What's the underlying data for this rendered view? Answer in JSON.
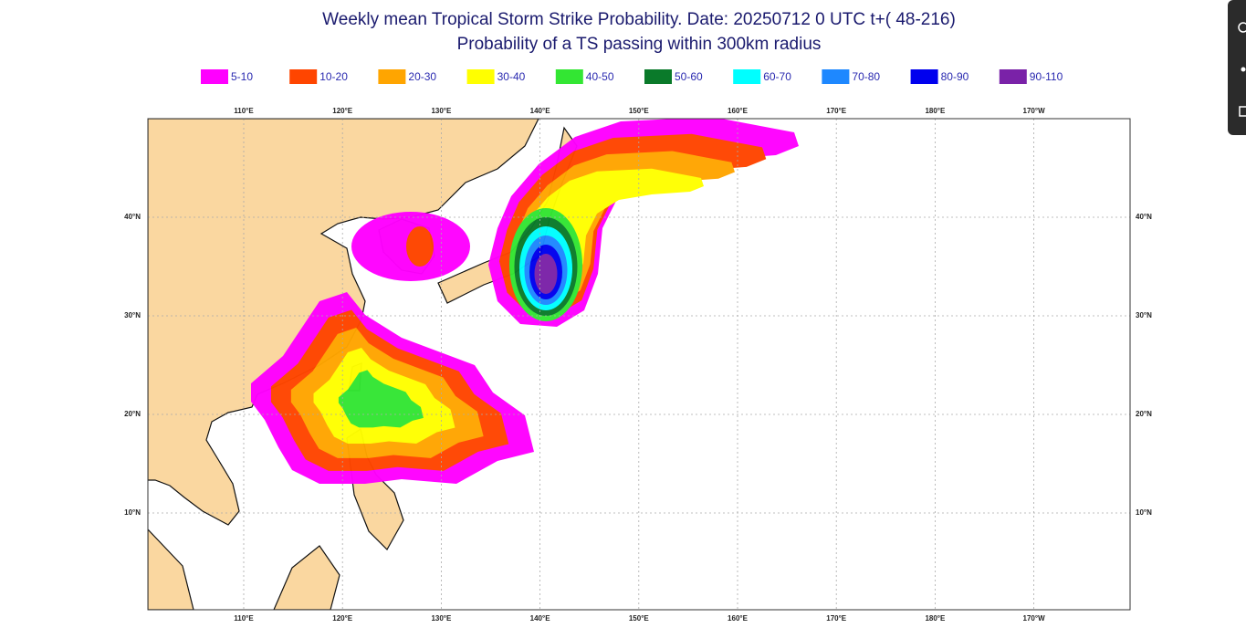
{
  "title": "Weekly mean Tropical Storm Strike Probability. Date: 20250712  0 UTC   t+( 48-216)",
  "subtitle": "Probability of a TS passing within  300km radius",
  "legend": [
    {
      "label": "5-10",
      "color": "#ff00ff"
    },
    {
      "label": "10-20",
      "color": "#ff4500"
    },
    {
      "label": "20-30",
      "color": "#ffa500"
    },
    {
      "label": "30-40",
      "color": "#ffff00"
    },
    {
      "label": "40-50",
      "color": "#33e633"
    },
    {
      "label": "50-60",
      "color": "#0a7a2a"
    },
    {
      "label": "60-70",
      "color": "#00ffff"
    },
    {
      "label": "70-80",
      "color": "#1e88ff"
    },
    {
      "label": "80-90",
      "color": "#0000ee"
    },
    {
      "label": "90-110",
      "color": "#7a22a8"
    }
  ],
  "lon_labels": [
    "110°E",
    "120°E",
    "130°E",
    "140°E",
    "150°E",
    "160°E",
    "170°E",
    "180°E",
    "170°W"
  ],
  "lat_labels": [
    "40°N",
    "30°N",
    "20°N",
    "10°N"
  ]
}
